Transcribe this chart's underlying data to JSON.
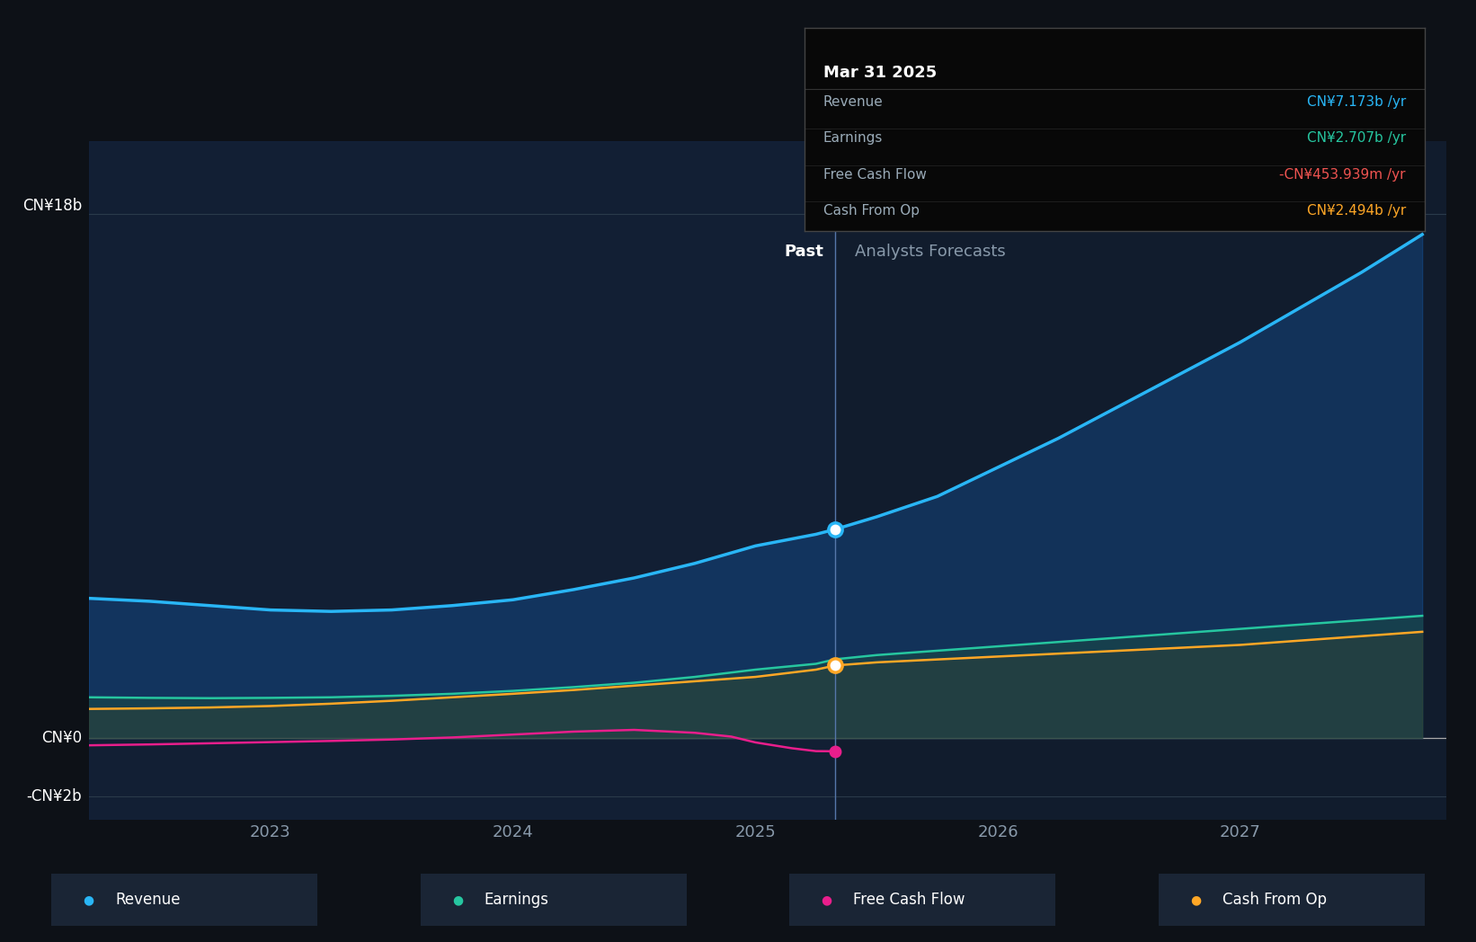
{
  "bg_color": "#0d1117",
  "plot_bg_color": "#111c2d",
  "divider_x": 2025.33,
  "past_label": "Past",
  "forecast_label": "Analysts Forecasts",
  "x_ticks": [
    2023,
    2024,
    2025,
    2026,
    2027
  ],
  "tooltip": {
    "date": "Mar 31 2025",
    "items": [
      {
        "label": "Revenue",
        "value": "CN¥7.173b /yr",
        "color": "#29b6f6"
      },
      {
        "label": "Earnings",
        "value": "CN¥2.707b /yr",
        "color": "#26c6a0"
      },
      {
        "label": "Free Cash Flow",
        "value": "-CN¥453.939m /yr",
        "color": "#ef5350"
      },
      {
        "label": "Cash From Op",
        "value": "CN¥2.494b /yr",
        "color": "#ffa726"
      }
    ]
  },
  "revenue_x": [
    2022.25,
    2022.5,
    2022.75,
    2023.0,
    2023.25,
    2023.5,
    2023.75,
    2024.0,
    2024.25,
    2024.5,
    2024.75,
    2025.0,
    2025.25,
    2025.33,
    2025.5,
    2025.75,
    2026.0,
    2026.25,
    2026.5,
    2026.75,
    2027.0,
    2027.25,
    2027.5,
    2027.75
  ],
  "revenue_y": [
    4.8,
    4.7,
    4.55,
    4.4,
    4.35,
    4.4,
    4.55,
    4.75,
    5.1,
    5.5,
    6.0,
    6.6,
    7.0,
    7.173,
    7.6,
    8.3,
    9.3,
    10.3,
    11.4,
    12.5,
    13.6,
    14.8,
    16.0,
    17.3
  ],
  "revenue_color": "#29b6f6",
  "earnings_x": [
    2022.25,
    2022.5,
    2022.75,
    2023.0,
    2023.25,
    2023.5,
    2023.75,
    2024.0,
    2024.25,
    2024.5,
    2024.75,
    2025.0,
    2025.25,
    2025.33,
    2025.5,
    2025.75,
    2026.0,
    2026.25,
    2026.5,
    2026.75,
    2027.0,
    2027.25,
    2027.5,
    2027.75
  ],
  "earnings_y": [
    1.4,
    1.38,
    1.37,
    1.38,
    1.4,
    1.45,
    1.52,
    1.62,
    1.75,
    1.9,
    2.1,
    2.35,
    2.55,
    2.707,
    2.85,
    3.0,
    3.15,
    3.3,
    3.45,
    3.6,
    3.75,
    3.9,
    4.05,
    4.2
  ],
  "earnings_color": "#26c6a0",
  "cashop_x": [
    2022.25,
    2022.5,
    2022.75,
    2023.0,
    2023.25,
    2023.5,
    2023.75,
    2024.0,
    2024.25,
    2024.5,
    2024.75,
    2025.0,
    2025.25,
    2025.33,
    2025.5,
    2025.75,
    2026.0,
    2026.25,
    2026.5,
    2026.75,
    2027.0,
    2027.25,
    2027.5,
    2027.75
  ],
  "cashop_y": [
    1.0,
    1.02,
    1.05,
    1.1,
    1.18,
    1.28,
    1.4,
    1.52,
    1.65,
    1.8,
    1.95,
    2.1,
    2.35,
    2.494,
    2.6,
    2.7,
    2.8,
    2.9,
    3.0,
    3.1,
    3.2,
    3.35,
    3.5,
    3.65
  ],
  "cashop_color": "#ffa726",
  "fcf_x": [
    2022.25,
    2022.5,
    2022.75,
    2023.0,
    2023.25,
    2023.5,
    2023.75,
    2024.0,
    2024.25,
    2024.5,
    2024.75,
    2024.9,
    2025.0,
    2025.15,
    2025.25,
    2025.33
  ],
  "fcf_y": [
    -0.25,
    -0.22,
    -0.18,
    -0.14,
    -0.1,
    -0.05,
    0.02,
    0.12,
    0.22,
    0.28,
    0.18,
    0.05,
    -0.15,
    -0.35,
    -0.45,
    -0.454
  ],
  "fcf_color": "#e91e8c",
  "ylim": [
    -2.8,
    20.5
  ],
  "xlim": [
    2022.25,
    2027.85
  ],
  "y_line_18": 18,
  "y_line_0": 0,
  "y_line_neg2": -2,
  "legend_items": [
    {
      "label": "Revenue",
      "color": "#29b6f6"
    },
    {
      "label": "Earnings",
      "color": "#26c6a0"
    },
    {
      "label": "Free Cash Flow",
      "color": "#e91e8c"
    },
    {
      "label": "Cash From Op",
      "color": "#ffa726"
    }
  ]
}
